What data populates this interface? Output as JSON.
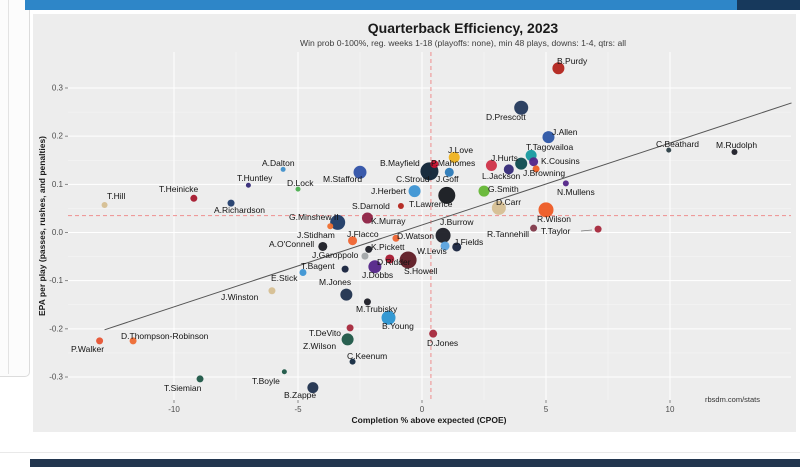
{
  "page": {
    "top_bar_color": "#2e86c8",
    "top_bar_right_color": "#17395c",
    "bottom_bar_color": "#22364f",
    "card_bg": "#ededed"
  },
  "chart_data": {
    "type": "scatter",
    "title": "Quarterback Efficiency, 2023",
    "subtitle": "Win prob 0-100%, reg. weeks 1-18 (playoffs: none), min 48 plays, downs: 1-4, qtrs: all",
    "xlabel": "Completion % above expected (CPOE)",
    "ylabel": "EPA per play (passes, rushes, and penalties)",
    "caption": "rbsdm.com/stats",
    "xlim": [
      -14.3,
      14.9
    ],
    "ylim": [
      -0.348,
      0.375
    ],
    "x_ticks": [
      -10,
      -5,
      0,
      5,
      10
    ],
    "x_tick_labels": [
      "-10",
      "-5",
      "0",
      "5",
      "10"
    ],
    "y_ticks": [
      0.3,
      0.2,
      0.1,
      0.0,
      -0.1,
      -0.2,
      -0.3
    ],
    "y_tick_labels": [
      "0.3",
      "0.2",
      "0.1",
      "0.0",
      "-0.1",
      "-0.2",
      "-0.3"
    ],
    "grid": true,
    "legend": false,
    "mean_lines": {
      "cpoe": 0.36,
      "epa": 0.035,
      "style": "dashed",
      "color": "#ee8484"
    },
    "trend_line": {
      "x1": -12.8,
      "y1": -0.202,
      "x2": 14.9,
      "y2": 0.269,
      "color": "#555555"
    },
    "points_schema": [
      "name",
      "cpoe",
      "epa",
      "radius_px",
      "color",
      "label_x",
      "label_y"
    ],
    "points": [
      [
        "B.Purdy",
        5.5,
        0.341,
        6,
        "#b3241c",
        557,
        64
      ],
      [
        "D.Prescott",
        4.0,
        0.259,
        7,
        "#24395c",
        486,
        120
      ],
      [
        "J.Allen",
        5.1,
        0.198,
        6,
        "#2c55a5",
        552,
        135
      ],
      [
        "T.Tagovailoa",
        4.4,
        0.16,
        5.5,
        "#179aa0",
        526,
        150
      ],
      [
        "K.Cousins",
        4.5,
        0.147,
        4.5,
        "#542589",
        541,
        164
      ],
      [
        "J.Hurts",
        4.0,
        0.143,
        6,
        "#0e4b50",
        491,
        161
      ],
      [
        "J.Browning",
        4.6,
        0.132,
        3.5,
        "#f05f24",
        523,
        176
      ],
      [
        "L.Jackson",
        3.5,
        0.131,
        5,
        "#352a78",
        482,
        179
      ],
      [
        "P.Mahomes",
        2.8,
        0.139,
        5.5,
        "#d03349",
        431,
        166
      ],
      [
        "J.Love",
        1.3,
        0.156,
        5.5,
        "#eeb21f",
        448,
        153
      ],
      [
        "B.Mayfield",
        0.5,
        0.142,
        4,
        "#c8102e",
        380,
        166
      ],
      [
        "C.Stroud",
        0.3,
        0.127,
        9,
        "#0e2336",
        396,
        182
      ],
      [
        "J.Goff",
        1.1,
        0.125,
        4.5,
        "#2b7ab8",
        436,
        182
      ],
      [
        "M.Stafford",
        -2.5,
        0.125,
        6.5,
        "#3052a8",
        323,
        182
      ],
      [
        "A.Dalton",
        -5.6,
        0.131,
        2.5,
        "#4190ca",
        262,
        166
      ],
      [
        "T.Huntley",
        -7.0,
        0.098,
        2.5,
        "#352a78",
        237,
        181
      ],
      [
        "D.Lock",
        -5.0,
        0.09,
        2.5,
        "#4caf50",
        287,
        186
      ],
      [
        "T.Hill",
        -12.8,
        0.057,
        3,
        "#d6bf92",
        107,
        199
      ],
      [
        "T.Heinicke",
        -9.2,
        0.071,
        3.5,
        "#a6192e",
        159,
        192
      ],
      [
        "A.Richardson",
        -7.7,
        0.061,
        3.5,
        "#223e6e",
        214,
        213
      ],
      [
        "G.Minshew II",
        -3.4,
        0.021,
        7.5,
        "#1d3a66",
        289,
        220
      ],
      [
        "J.Herbert",
        -0.3,
        0.086,
        6,
        "#3d95d4",
        371,
        194
      ],
      [
        "S.Darnold",
        -0.85,
        0.055,
        3,
        "#b3241c",
        352,
        209
      ],
      [
        "K.Murray",
        -2.2,
        0.03,
        5.5,
        "#8e2244",
        371,
        224
      ],
      [
        "T.Lawrence",
        1.0,
        0.077,
        8.5,
        "#16191f",
        409,
        207
      ],
      [
        "G.Smith",
        2.5,
        0.086,
        5.5,
        "#65b735",
        488,
        192
      ],
      [
        "D.Carr",
        3.1,
        0.051,
        7,
        "#d6bf92",
        496,
        205
      ],
      [
        "R.Wilson",
        5.0,
        0.047,
        7.5,
        "#ee5a24",
        537,
        222
      ],
      [
        "N.Mullens",
        5.8,
        0.102,
        3,
        "#542589",
        557,
        195
      ],
      [
        "J.Burrow",
        0.85,
        -0.006,
        7.5,
        "#1c1e26",
        440,
        225
      ],
      [
        "D.Watson",
        -1.05,
        -0.012,
        3.5,
        "#ef6430",
        397,
        239
      ],
      [
        "J.Fields",
        1.4,
        -0.03,
        4.5,
        "#17233d",
        454,
        245
      ],
      [
        "W.Levis",
        0.93,
        -0.028,
        4.5,
        "#5ba3de",
        417,
        254
      ],
      [
        "R.Tannehill",
        4.5,
        0.009,
        3.5,
        "#82394a",
        487,
        237
      ],
      [
        "T.Taylor",
        7.1,
        0.007,
        3.5,
        "#a6283c",
        541,
        234
      ],
      [
        "D.Ridder",
        -1.3,
        -0.055,
        4.5,
        "#a71930",
        377,
        265
      ],
      [
        "S.Howell",
        -0.56,
        -0.057,
        8.5,
        "#5f1a24",
        404,
        274
      ],
      [
        "J.Dobbs",
        -1.9,
        -0.071,
        6.5,
        "#542589",
        362,
        278
      ],
      [
        "K.Pickett",
        -2.15,
        -0.035,
        3.5,
        "#1c1e26",
        371,
        250
      ],
      [
        "J.Garoppolo",
        -2.3,
        -0.049,
        3.5,
        "#a2a6a9",
        312,
        258
      ],
      [
        "T.Bagent",
        -3.1,
        -0.076,
        3.5,
        "#17233d",
        301,
        269
      ],
      [
        "A.O'Connell",
        -4.0,
        -0.029,
        4.5,
        "#1c1e26",
        269,
        247
      ],
      [
        "J.Stidham",
        -3.7,
        0.013,
        3,
        "#f07030",
        297,
        238
      ],
      [
        "J.Flacco",
        -2.8,
        -0.017,
        4.5,
        "#ef6430",
        347,
        237
      ],
      [
        "E.Stick",
        -4.8,
        -0.083,
        3.5,
        "#3d95d4",
        271,
        281
      ],
      [
        "J.Winston",
        -6.05,
        -0.121,
        3.5,
        "#d6bf92",
        221,
        300
      ],
      [
        "M.Jones",
        -3.05,
        -0.129,
        6,
        "#20324e",
        319,
        285
      ],
      [
        "M.Trubisky",
        -2.2,
        -0.144,
        3.5,
        "#1c1e26",
        356,
        312
      ],
      [
        "B.Young",
        -1.35,
        -0.177,
        7,
        "#2a95d2",
        382,
        329
      ],
      [
        "T.DeVito",
        -2.9,
        -0.198,
        3.5,
        "#a6283c",
        309,
        336
      ],
      [
        "Z.Wilson",
        -3.0,
        -0.222,
        6,
        "#1d5747",
        303,
        349
      ],
      [
        "C.Keenum",
        -2.8,
        -0.268,
        3,
        "#132a40",
        347,
        359
      ],
      [
        "D.Jones",
        0.45,
        -0.21,
        4,
        "#a6283c",
        427,
        346
      ],
      [
        "D.Thompson-Robinson",
        -11.65,
        -0.225,
        3.5,
        "#ee6a33",
        121,
        339
      ],
      [
        "P.Walker",
        -13.0,
        -0.225,
        3.5,
        "#e85433",
        71,
        352
      ],
      [
        "T.Siemian",
        -8.95,
        -0.304,
        3.5,
        "#1d5747",
        164,
        391
      ],
      [
        "T.Boyle",
        -5.55,
        -0.289,
        2.5,
        "#1d5747",
        252,
        384
      ],
      [
        "B.Zappe",
        -4.4,
        -0.322,
        5.5,
        "#20324e",
        284,
        398
      ],
      [
        "C.Beathard",
        9.95,
        0.171,
        2.5,
        "#2c3e44",
        656,
        147
      ],
      [
        "M.Rudolph",
        12.6,
        0.167,
        3,
        "#1c1e26",
        716,
        148
      ]
    ],
    "leader_lines": [
      {
        "from": [
          343,
          267
        ],
        "to": [
          346,
          269
        ],
        "style": "dotted"
      },
      {
        "from": [
          581,
          231
        ],
        "to": [
          592,
          230
        ],
        "style": "solid"
      }
    ]
  }
}
